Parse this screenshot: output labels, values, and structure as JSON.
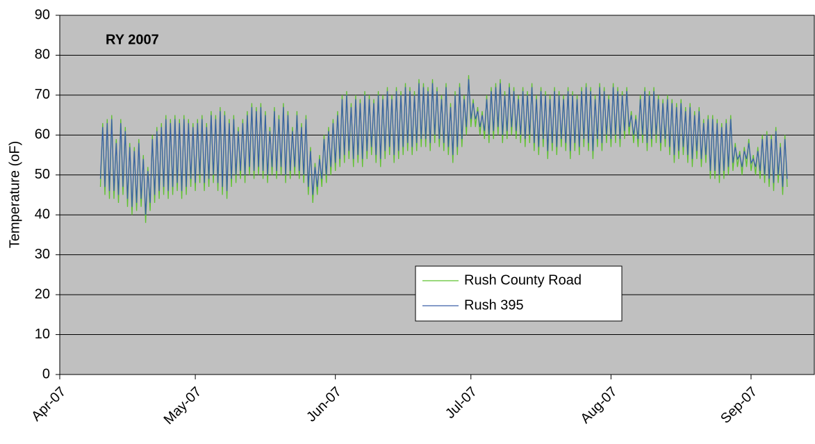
{
  "chart_data": {
    "type": "line",
    "title": "RY 2007",
    "ylabel": "Temperature (oF)",
    "xlim": [
      0,
      167
    ],
    "ylim": [
      0,
      90
    ],
    "xticks": [
      {
        "value": 0,
        "label": "Apr-07"
      },
      {
        "value": 30,
        "label": "May-07"
      },
      {
        "value": 61,
        "label": "Jun-07"
      },
      {
        "value": 91,
        "label": "Jul-07"
      },
      {
        "value": 122,
        "label": "Aug-07"
      },
      {
        "value": 153,
        "label": "Sep-07"
      }
    ],
    "yticks": [
      0,
      10,
      20,
      30,
      40,
      50,
      60,
      70,
      80,
      90
    ],
    "grid": true,
    "legend": "bottom-center",
    "x": [
      9,
      9.5,
      10,
      10.5,
      11,
      11.5,
      12,
      12.5,
      13,
      13.5,
      14,
      14.5,
      15,
      15.5,
      16,
      16.5,
      17,
      17.5,
      18,
      18.5,
      19,
      19.5,
      20,
      20.5,
      21,
      21.5,
      22,
      22.5,
      23,
      23.5,
      24,
      24.5,
      25,
      25.5,
      26,
      26.5,
      27,
      27.5,
      28,
      28.5,
      29,
      29.5,
      30,
      30.5,
      31,
      31.5,
      32,
      32.5,
      33,
      33.5,
      34,
      34.5,
      35,
      35.5,
      36,
      36.5,
      37,
      37.5,
      38,
      38.5,
      39,
      39.5,
      40,
      40.5,
      41,
      41.5,
      42,
      42.5,
      43,
      43.5,
      44,
      44.5,
      45,
      45.5,
      46,
      46.5,
      47,
      47.5,
      48,
      48.5,
      49,
      49.5,
      50,
      50.5,
      51,
      51.5,
      52,
      52.5,
      53,
      53.5,
      54,
      54.5,
      55,
      55.5,
      56,
      56.5,
      57,
      57.5,
      58,
      58.5,
      59,
      59.5,
      60,
      60.5,
      61,
      61.5,
      62,
      62.5,
      63,
      63.5,
      64,
      64.5,
      65,
      65.5,
      66,
      66.5,
      67,
      67.5,
      68,
      68.5,
      69,
      69.5,
      70,
      70.5,
      71,
      71.5,
      72,
      72.5,
      73,
      73.5,
      74,
      74.5,
      75,
      75.5,
      76,
      76.5,
      77,
      77.5,
      78,
      78.5,
      79,
      79.5,
      80,
      80.5,
      81,
      81.5,
      82,
      82.5,
      83,
      83.5,
      84,
      84.5,
      85,
      85.5,
      86,
      86.5,
      87,
      87.5,
      88,
      88.5,
      89,
      89.5,
      90,
      90.5,
      91,
      91.5,
      92,
      92.5,
      93,
      93.5,
      94,
      94.5,
      95,
      95.5,
      96,
      96.5,
      97,
      97.5,
      98,
      98.5,
      99,
      99.5,
      100,
      100.5,
      101,
      101.5,
      102,
      102.5,
      103,
      103.5,
      104,
      104.5,
      105,
      105.5,
      106,
      106.5,
      107,
      107.5,
      108,
      108.5,
      109,
      109.5,
      110,
      110.5,
      111,
      111.5,
      112,
      112.5,
      113,
      113.5,
      114,
      114.5,
      115,
      115.5,
      116,
      116.5,
      117,
      117.5,
      118,
      118.5,
      119,
      119.5,
      120,
      120.5,
      121,
      121.5,
      122,
      122.5,
      123,
      123.5,
      124,
      124.5,
      125,
      125.5,
      126,
      126.5,
      127,
      127.5,
      128,
      128.5,
      129,
      129.5,
      130,
      130.5,
      131,
      131.5,
      132,
      132.5,
      133,
      133.5,
      134,
      134.5,
      135,
      135.5,
      136,
      136.5,
      137,
      137.5,
      138,
      138.5,
      139,
      139.5,
      140,
      140.5,
      141,
      141.5,
      142,
      142.5,
      143,
      143.5,
      144,
      144.5,
      145,
      145.5,
      146,
      146.5,
      147,
      147.5,
      148,
      148.5,
      149,
      149.5,
      150,
      150.5,
      151,
      151.5,
      152,
      152.5,
      153,
      153.5,
      154,
      154.5,
      155,
      155.5,
      156,
      156.5,
      157,
      157.5,
      158,
      158.5,
      159,
      159.5,
      160,
      160.5,
      161
    ],
    "series": [
      {
        "name": "Rush County Road",
        "color": "#5ec22e",
        "values": [
          47,
          63,
          45,
          64,
          44,
          65,
          44,
          59,
          43,
          64,
          45,
          62,
          42,
          58,
          40,
          57,
          41,
          59,
          42,
          55,
          38,
          52,
          41,
          60,
          43,
          62,
          44,
          63,
          45,
          65,
          44,
          64,
          45,
          65,
          46,
          64,
          44,
          65,
          45,
          64,
          47,
          63,
          46,
          64,
          48,
          65,
          46,
          63,
          47,
          66,
          48,
          65,
          46,
          67,
          45,
          66,
          44,
          64,
          47,
          65,
          48,
          62,
          49,
          64,
          48,
          66,
          50,
          68,
          49,
          67,
          50,
          68,
          49,
          66,
          48,
          62,
          50,
          67,
          49,
          65,
          50,
          68,
          48,
          66,
          49,
          62,
          50,
          66,
          49,
          63,
          48,
          65,
          45,
          57,
          43,
          53,
          45,
          55,
          47,
          60,
          48,
          62,
          50,
          64,
          51,
          66,
          52,
          70,
          53,
          71,
          54,
          68,
          52,
          70,
          53,
          69,
          52,
          71,
          54,
          70,
          55,
          69,
          53,
          71,
          52,
          70,
          54,
          72,
          55,
          70,
          53,
          72,
          54,
          71,
          55,
          73,
          56,
          72,
          55,
          71,
          56,
          74,
          57,
          73,
          57,
          72,
          56,
          74,
          58,
          72,
          57,
          70,
          56,
          73,
          55,
          68,
          53,
          71,
          55,
          73,
          57,
          70,
          60,
          75,
          62,
          69,
          62,
          67,
          60,
          66,
          59,
          70,
          58,
          72,
          59,
          73,
          60,
          74,
          58,
          71,
          59,
          73,
          60,
          72,
          59,
          70,
          58,
          72,
          57,
          71,
          58,
          73,
          56,
          70,
          55,
          72,
          57,
          71,
          54,
          70,
          56,
          72,
          55,
          71,
          57,
          70,
          56,
          72,
          54,
          71,
          56,
          70,
          55,
          72,
          57,
          73,
          56,
          72,
          54,
          70,
          57,
          73,
          56,
          72,
          58,
          70,
          57,
          73,
          58,
          72,
          57,
          71,
          59,
          72,
          60,
          66,
          58,
          65,
          57,
          70,
          58,
          72,
          56,
          71,
          57,
          72,
          58,
          70,
          56,
          69,
          57,
          70,
          55,
          69,
          53,
          68,
          54,
          69,
          55,
          67,
          53,
          68,
          52,
          66,
          54,
          67,
          52,
          64,
          53,
          65,
          49,
          65,
          49,
          64,
          48,
          63,
          49,
          64,
          50,
          65,
          51,
          58,
          52,
          56,
          50,
          57,
          52,
          59,
          51,
          55,
          50,
          57,
          49,
          60,
          48,
          61,
          47,
          60,
          46,
          62,
          48,
          58,
          45,
          60,
          47
        ]
      },
      {
        "name": "Rush 395",
        "color": "#3a5fa8",
        "values": [
          49,
          62,
          47,
          63,
          46,
          64,
          46,
          58,
          45,
          63,
          47,
          61,
          44,
          57,
          42,
          56,
          43,
          58,
          44,
          54,
          40,
          51,
          43,
          59,
          45,
          61,
          46,
          62,
          47,
          64,
          46,
          63,
          47,
          64,
          48,
          63,
          46,
          64,
          47,
          63,
          49,
          62,
          48,
          63,
          50,
          64,
          48,
          62,
          49,
          65,
          50,
          64,
          48,
          66,
          47,
          65,
          46,
          63,
          49,
          64,
          50,
          61,
          51,
          63,
          50,
          65,
          52,
          67,
          51,
          66,
          52,
          67,
          51,
          65,
          50,
          61,
          52,
          66,
          51,
          64,
          52,
          67,
          50,
          65,
          51,
          61,
          52,
          65,
          51,
          62,
          50,
          64,
          47,
          56,
          45,
          52,
          47,
          54,
          49,
          59,
          50,
          61,
          52,
          63,
          53,
          65,
          54,
          69,
          55,
          70,
          56,
          67,
          54,
          69,
          55,
          68,
          54,
          70,
          56,
          69,
          57,
          68,
          55,
          70,
          54,
          69,
          56,
          71,
          57,
          69,
          55,
          71,
          56,
          70,
          57,
          72,
          58,
          71,
          57,
          70,
          58,
          73,
          59,
          72,
          59,
          71,
          58,
          73,
          60,
          71,
          59,
          69,
          58,
          72,
          57,
          67,
          55,
          70,
          57,
          72,
          59,
          69,
          62,
          74,
          64,
          68,
          64,
          66,
          62,
          65,
          61,
          69,
          60,
          71,
          61,
          72,
          62,
          73,
          60,
          70,
          61,
          72,
          62,
          71,
          61,
          69,
          60,
          71,
          59,
          70,
          60,
          72,
          58,
          69,
          57,
          71,
          59,
          70,
          56,
          69,
          58,
          71,
          57,
          70,
          59,
          69,
          58,
          71,
          56,
          70,
          58,
          69,
          57,
          71,
          59,
          72,
          58,
          71,
          56,
          69,
          59,
          72,
          58,
          71,
          60,
          69,
          59,
          72,
          60,
          71,
          59,
          70,
          61,
          71,
          62,
          65,
          60,
          64,
          59,
          69,
          60,
          71,
          58,
          70,
          59,
          71,
          60,
          69,
          58,
          68,
          59,
          69,
          57,
          68,
          55,
          67,
          56,
          68,
          57,
          66,
          55,
          67,
          54,
          65,
          56,
          66,
          54,
          63,
          55,
          64,
          51,
          64,
          51,
          63,
          50,
          62,
          51,
          63,
          52,
          64,
          53,
          57,
          54,
          55,
          52,
          56,
          54,
          58,
          53,
          54,
          52,
          56,
          51,
          59,
          50,
          60,
          49,
          59,
          48,
          61,
          50,
          57,
          47,
          59,
          49
        ]
      }
    ]
  }
}
